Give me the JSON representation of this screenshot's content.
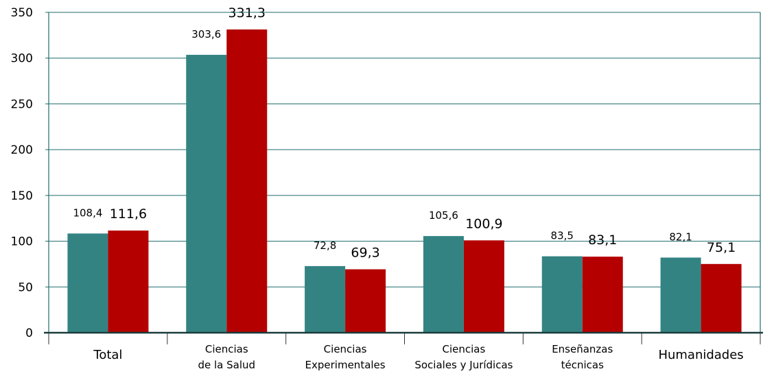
{
  "chart_data": {
    "type": "bar",
    "title": "",
    "xlabel": "",
    "ylabel": "",
    "ylim": [
      0,
      350
    ],
    "yticks": [
      0,
      50,
      100,
      150,
      200,
      250,
      300,
      350
    ],
    "grid": true,
    "legend": "none",
    "categories": [
      [
        "Total"
      ],
      [
        "Ciencias",
        "de la Salud"
      ],
      [
        "Ciencias",
        "Experimentales"
      ],
      [
        "Ciencias",
        "Sociales y Jurídicas"
      ],
      [
        "Enseñanzas",
        "técnicas"
      ],
      [
        "Humanidades"
      ]
    ],
    "series": [
      {
        "color": "#348383",
        "values": [
          108.4,
          303.6,
          72.8,
          105.6,
          83.5,
          82.1
        ],
        "labels": [
          "108,4",
          "303,6",
          "72,8",
          "105,6",
          "83,5",
          "82,1"
        ]
      },
      {
        "color": "#B50000",
        "values": [
          111.6,
          331.3,
          69.3,
          100.9,
          83.1,
          75.1
        ],
        "labels": [
          "111,6",
          "331,3",
          "69,3",
          "100,9",
          "83,1",
          "75,1"
        ]
      }
    ]
  }
}
